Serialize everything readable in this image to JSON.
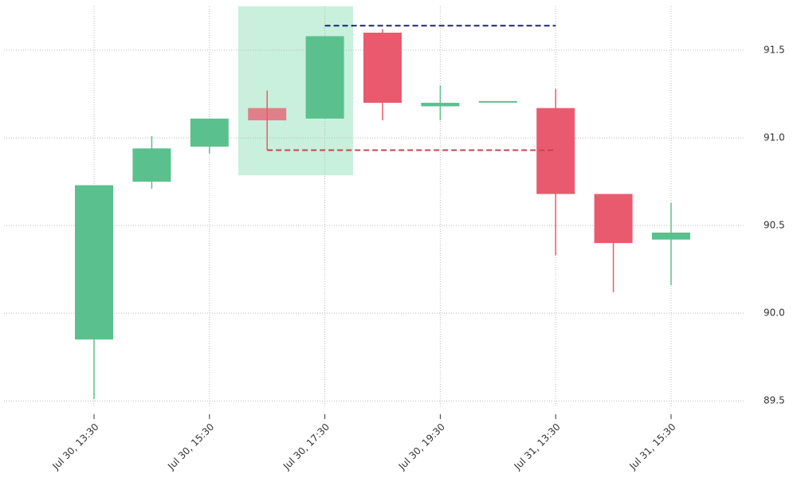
{
  "chart_data": {
    "type": "candlestick",
    "categories": [
      "Jul 30, 13:30",
      null,
      "Jul 30, 15:30",
      null,
      "Jul 30, 17:30",
      null,
      "Jul 30, 19:30",
      null,
      "Jul 31, 13:30",
      null,
      "Jul 31, 15:30"
    ],
    "open": [
      89.85,
      90.75,
      90.95,
      91.17,
      91.11,
      91.6,
      91.18,
      91.21,
      91.17,
      90.68,
      90.42
    ],
    "high": [
      90.73,
      91.01,
      91.11,
      91.27,
      91.58,
      91.62,
      91.3,
      91.21,
      91.28,
      90.68,
      90.63
    ],
    "low": [
      89.51,
      90.71,
      90.91,
      90.93,
      91.11,
      91.1,
      91.1,
      91.21,
      90.33,
      90.12,
      90.16
    ],
    "close": [
      90.73,
      90.94,
      91.11,
      91.1,
      91.58,
      91.2,
      91.2,
      91.21,
      90.68,
      90.4,
      90.46
    ],
    "up_color": "#5ac18e",
    "down_color": "#ea5a6e",
    "levels": [
      {
        "value": 91.64,
        "color": "#1a237e"
      },
      {
        "value": 90.93,
        "color": "#c0474f"
      }
    ],
    "ylim": [
      89.46,
      91.75
    ],
    "yticks": [
      89.5,
      {
        "value": 90,
        "label": "90.0"
      },
      90.5,
      {
        "value": 91,
        "label": "91.0"
      },
      91.5
    ],
    "grid": true
  }
}
